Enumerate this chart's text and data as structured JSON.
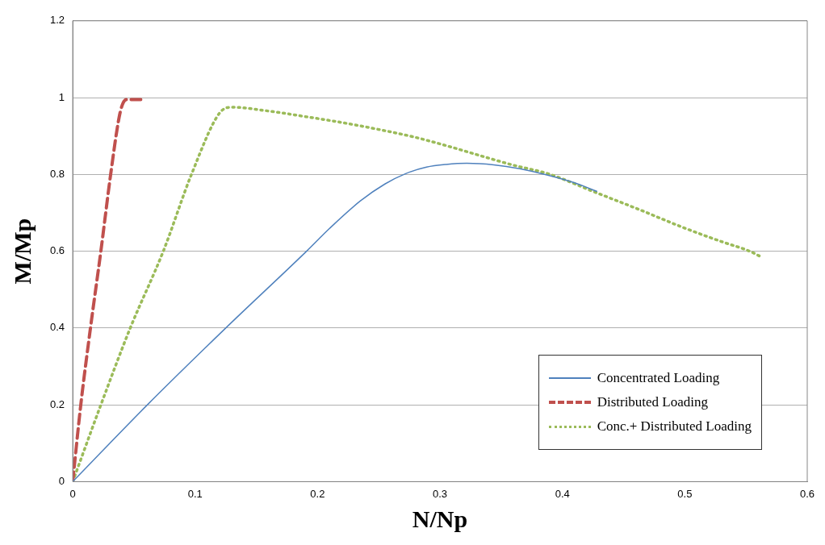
{
  "chart_data": {
    "type": "line",
    "xlabel": "N/Np",
    "ylabel": "M/Mp",
    "xlim": [
      0,
      0.6
    ],
    "ylim": [
      0,
      1.2
    ],
    "xticks": [
      0,
      0.1,
      0.2,
      0.3,
      0.4,
      0.5,
      0.6
    ],
    "yticks": [
      0,
      0.2,
      0.4,
      0.6,
      0.8,
      1,
      1.2
    ],
    "grid": "y",
    "legend": "bottom right",
    "marker": "none",
    "series": [
      {
        "name": "Concentrated Loading",
        "color": "#4f81bd",
        "line_style": "solid",
        "x": [
          0,
          0.061,
          0.125,
          0.191,
          0.21,
          0.235,
          0.255,
          0.272,
          0.289,
          0.305,
          0.322,
          0.344,
          0.365,
          0.388,
          0.41,
          0.428
        ],
        "values": [
          0,
          0.2,
          0.4,
          0.6,
          0.66,
          0.731,
          0.775,
          0.802,
          0.819,
          0.826,
          0.829,
          0.825,
          0.815,
          0.798,
          0.778,
          0.756
        ]
      },
      {
        "name": "Distributed Loading",
        "color": "#c0504d",
        "line_style": "dashed",
        "x": [
          0,
          0.0066,
          0.0145,
          0.023,
          0.031,
          0.038,
          0.041,
          0.044,
          0.059
        ],
        "values": [
          0,
          0.2,
          0.4,
          0.6,
          0.8,
          0.95,
          0.985,
          0.995,
          0.995
        ]
      },
      {
        "name": "Conc.+ Distributed Loading",
        "color": "#9bbb59",
        "line_style": "dotted",
        "x": [
          0,
          0.023,
          0.047,
          0.074,
          0.097,
          0.12,
          0.13,
          0.16,
          0.191,
          0.22,
          0.25,
          0.278,
          0.305,
          0.336,
          0.36,
          0.388,
          0.428,
          0.46,
          0.5,
          0.53,
          0.553,
          0.5625
        ],
        "values": [
          0,
          0.2,
          0.4,
          0.6,
          0.8,
          0.96,
          0.975,
          0.965,
          0.95,
          0.935,
          0.917,
          0.898,
          0.875,
          0.846,
          0.824,
          0.802,
          0.752,
          0.712,
          0.66,
          0.625,
          0.6,
          0.585
        ]
      }
    ]
  }
}
